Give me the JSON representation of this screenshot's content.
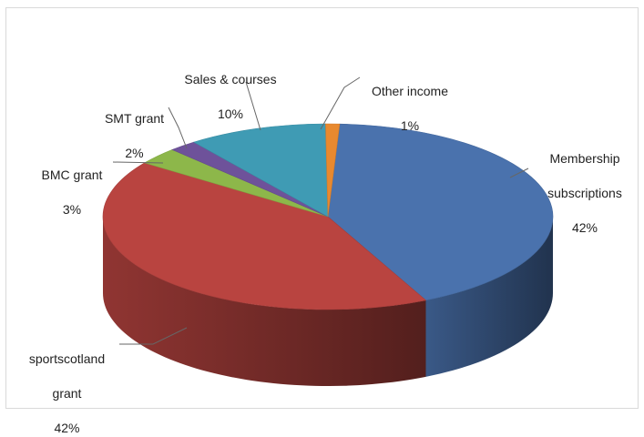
{
  "chart_data": {
    "type": "pie",
    "title": "",
    "style": "3d-tilted",
    "slices": [
      {
        "label": "Membership subscriptions",
        "label_lines": [
          "Membership",
          "subscriptions"
        ],
        "value": 42,
        "display": "42%",
        "color": "#4a72ad"
      },
      {
        "label": "sportscotland grant",
        "label_lines": [
          "sportscotland",
          "grant"
        ],
        "value": 42,
        "display": "42%",
        "color": "#b94440"
      },
      {
        "label": "BMC grant",
        "label_lines": [
          "BMC grant"
        ],
        "value": 3,
        "display": "3%",
        "color": "#8db74a"
      },
      {
        "label": "SMT grant",
        "label_lines": [
          "SMT grant"
        ],
        "value": 2,
        "display": "2%",
        "color": "#6e529a"
      },
      {
        "label": "Sales & courses",
        "label_lines": [
          "Sales & courses"
        ],
        "value": 10,
        "display": "10%",
        "color": "#3f9bb4"
      },
      {
        "label": "Other income",
        "label_lines": [
          "Other income"
        ],
        "value": 1,
        "display": "1%",
        "color": "#e8892f"
      }
    ]
  }
}
